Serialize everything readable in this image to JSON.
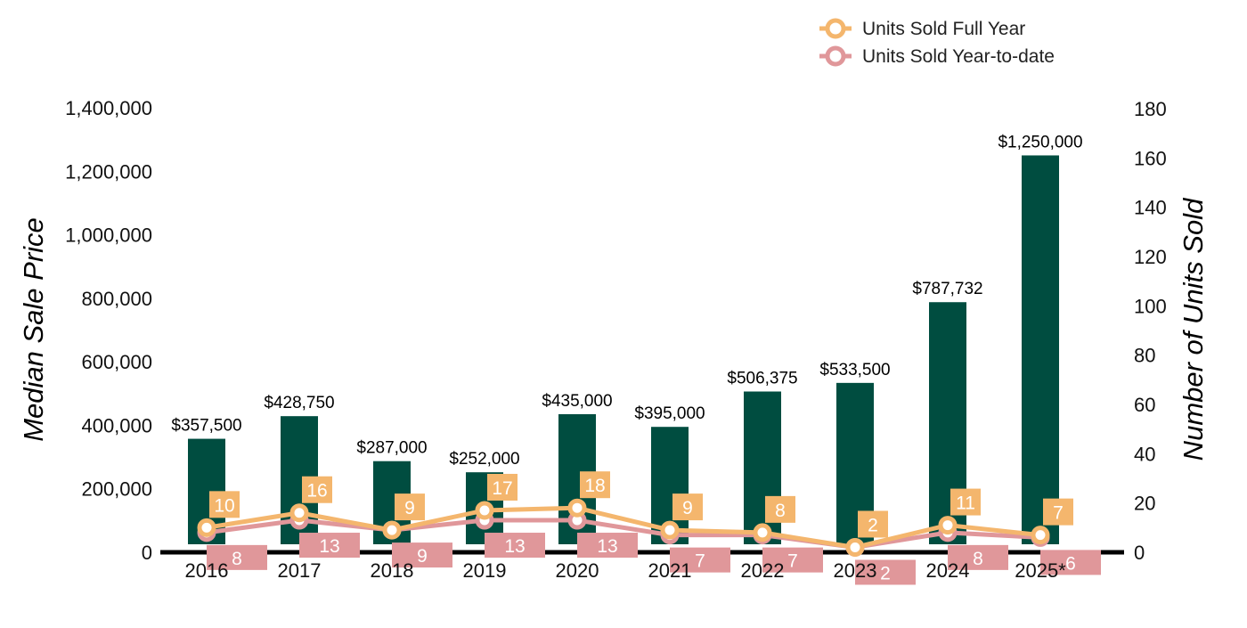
{
  "chart_data": {
    "type": "bar",
    "categories": [
      "2016",
      "2017",
      "2018",
      "2019",
      "2020",
      "2021",
      "2022",
      "2023",
      "2024",
      "2025*"
    ],
    "y_left": {
      "title": "Median Sale Price",
      "range": [
        0,
        1400000
      ],
      "ticks": [
        "0",
        "200,000",
        "400,000",
        "600,000",
        "800,000",
        "1,000,000",
        "1,200,000",
        "1,400,000"
      ]
    },
    "y_right": {
      "title": "Number of Units Sold",
      "range": [
        0,
        180
      ],
      "ticks": [
        "0",
        "20",
        "40",
        "60",
        "80",
        "100",
        "120",
        "140",
        "160",
        "180"
      ]
    },
    "bars": {
      "name": "Median Sale Price",
      "axis": "left",
      "color": "#004d40",
      "values": [
        357500,
        428750,
        287000,
        252000,
        435000,
        395000,
        506375,
        533500,
        787732,
        1250000
      ],
      "labels": [
        "$357,500",
        "$428,750",
        "$287,000",
        "$252,000",
        "$435,000",
        "$395,000",
        "$506,375",
        "$533,500",
        "$787,732",
        "$1,250,000"
      ]
    },
    "series": [
      {
        "name": "Units Sold Full Year",
        "type": "line",
        "axis": "right",
        "color": "#f4b66d",
        "values": [
          10,
          16,
          9,
          17,
          18,
          9,
          8,
          2,
          11,
          7
        ]
      },
      {
        "name": "Units Sold Year-to-date",
        "type": "line",
        "axis": "right",
        "color": "#e0979a",
        "values": [
          8,
          13,
          9,
          13,
          13,
          7,
          7,
          2,
          8,
          6
        ]
      }
    ],
    "legend": {
      "position": "top-right"
    },
    "grid": false
  }
}
